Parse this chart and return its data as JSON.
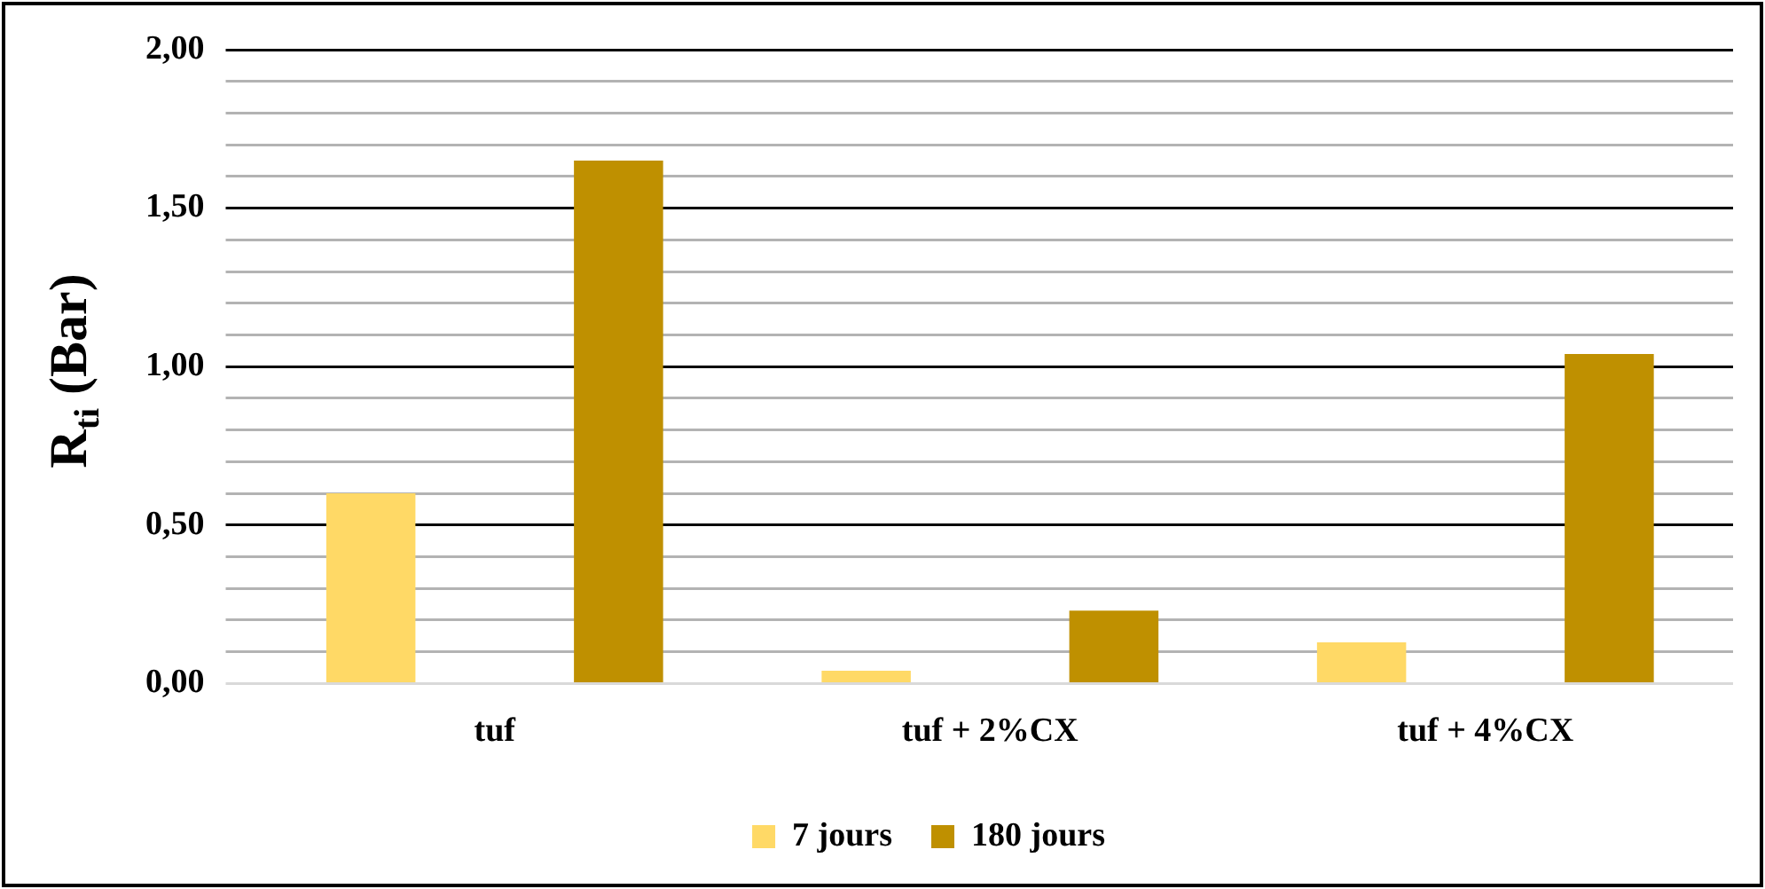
{
  "chart_data": {
    "type": "bar",
    "ylabel": "R$_{ti}$ (Bar)",
    "categories": [
      "tuf",
      "tuf + 2%CX",
      "tuf + 4%CX"
    ],
    "series": [
      {
        "name": "7 jours",
        "color": "#ffd966",
        "values": [
          0.6,
          0.04,
          0.13
        ]
      },
      {
        "name": "180 jours",
        "color": "#bf9000",
        "values": [
          1.65,
          0.23,
          1.04
        ]
      }
    ],
    "ylim": [
      0,
      2
    ],
    "yticks": [
      {
        "value": 0,
        "label": "0,00"
      },
      {
        "value": 0.1,
        "label": null
      },
      {
        "value": 0.2,
        "label": null
      },
      {
        "value": 0.3,
        "label": null
      },
      {
        "value": 0.4,
        "label": null
      },
      {
        "value": 0.5,
        "label": "0,50"
      },
      {
        "value": 0.6,
        "label": null
      },
      {
        "value": 0.7,
        "label": null
      },
      {
        "value": 0.8,
        "label": null
      },
      {
        "value": 0.9,
        "label": null
      },
      {
        "value": 1,
        "label": "1,00"
      },
      {
        "value": 1.1,
        "label": null
      },
      {
        "value": 1.2,
        "label": null
      },
      {
        "value": 1.3,
        "label": null
      },
      {
        "value": 1.4,
        "label": null
      },
      {
        "value": 1.5,
        "label": "1,50"
      },
      {
        "value": 1.6,
        "label": null
      },
      {
        "value": 1.7,
        "label": null
      },
      {
        "value": 1.8,
        "label": null
      },
      {
        "value": 1.9,
        "label": null
      },
      {
        "value": 2,
        "label": "2,00"
      }
    ],
    "grid": true,
    "legend": "bottom"
  }
}
